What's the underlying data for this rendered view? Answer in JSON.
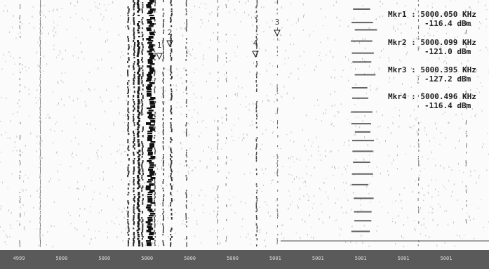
{
  "markers": [
    {
      "id": "1",
      "readout": "Mkr1 : 5000.050 KHz",
      "level": "-116.4 dBm"
    },
    {
      "id": "2",
      "readout": "Mkr2 : 5000.099 KHz",
      "level": "-121.0 dBm"
    },
    {
      "id": "3",
      "readout": "Mkr3 : 5000.395 KHz",
      "level": "-127.2 dBm"
    },
    {
      "id": "4",
      "readout": "Mkr4 : 5000.496 KHz",
      "level": "-116.4 dBm"
    }
  ],
  "axis_labels": [
    "4999",
    "5000",
    "5000",
    "5000",
    "5000",
    "5000",
    "5001",
    "5001",
    "5001",
    "5001",
    "5001"
  ]
}
